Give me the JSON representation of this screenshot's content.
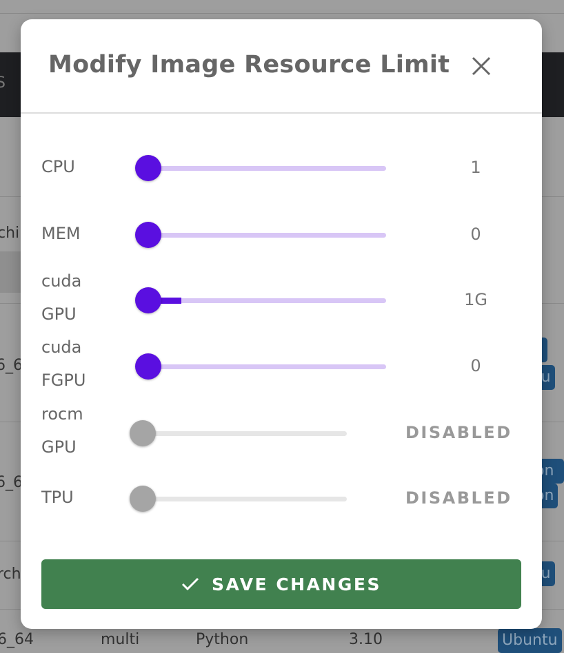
{
  "background": {
    "fragments": [
      "S",
      "chi",
      "6_6",
      "6_6",
      "rch",
      "6_64",
      "multi",
      "Python",
      "3.10"
    ],
    "badges": [
      "tu",
      "on 3",
      "on",
      "tu",
      "Ubuntu"
    ]
  },
  "dialog": {
    "title": "Modify Image Resource Limit",
    "close_icon": "close-icon",
    "sliders": [
      {
        "label": [
          "CPU"
        ],
        "value": "1",
        "enabled": true,
        "fraction": 0
      },
      {
        "label": [
          "MEM"
        ],
        "value": "0",
        "enabled": true,
        "fraction": 0
      },
      {
        "label": [
          "cuda",
          "GPU"
        ],
        "value": "1G",
        "enabled": true,
        "fraction": 0.14
      },
      {
        "label": [
          "cuda",
          "FGPU"
        ],
        "value": "0",
        "enabled": true,
        "fraction": 0
      },
      {
        "label": [
          "rocm",
          "GPU"
        ],
        "value": "DISABLED",
        "enabled": false,
        "fraction": 0
      },
      {
        "label": [
          "TPU"
        ],
        "value": "DISABLED",
        "enabled": false,
        "fraction": 0
      }
    ],
    "save_label": "SAVE CHANGES",
    "save_icon": "check-icon"
  },
  "colors": {
    "accent": "#5a0fe0",
    "track": "#d8c6f6",
    "disabled_thumb": "#a5a5a5",
    "disabled_track": "#e6e6e6",
    "save": "#41814f"
  }
}
